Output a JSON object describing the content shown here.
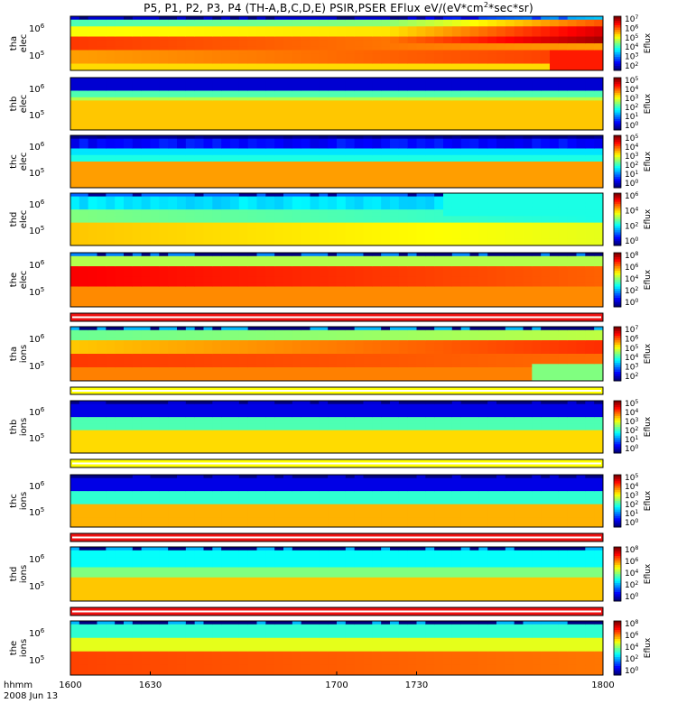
{
  "chart_data": {
    "type": "heatmap",
    "title": "P5, P1, P2, P3, P4 (TH-A,B,C,D,E) PSIR,PSER EFlux eV/(eV*cm2*sec*sr)",
    "title_parts": {
      "main": "P5, P1, P2, P3, P4 (TH-A,B,C,D,E) PSIR,PSER EFlux eV/(eV*cm",
      "sup": "2",
      "tail": "*sec*sr)"
    },
    "xlabel_lines": [
      "hhmm",
      "2008 Jun 13"
    ],
    "x_range": [
      1600,
      1800
    ],
    "x_ticks": [
      "1600",
      "1630",
      "1700",
      "1730",
      "1800"
    ],
    "colorbar_label": "Eflux",
    "colors": {
      "bar_red": "#ee1111",
      "bar_yellow": "#ffff00",
      "bar_white": "#ffffff"
    },
    "panels": [
      {
        "id": "tha-elec",
        "probe": "tha",
        "species": "elec",
        "yticks": [
          {
            "base": "10",
            "exp": "6"
          },
          {
            "base": "10",
            "exp": "5"
          }
        ],
        "cbar_labels": [
          {
            "base": "10",
            "exp": "7"
          },
          {
            "base": "10",
            "exp": "6"
          },
          {
            "base": "10",
            "exp": "5"
          },
          {
            "base": "10",
            "exp": "4"
          },
          {
            "base": "10",
            "exp": "3"
          },
          {
            "base": "10",
            "exp": "2"
          }
        ],
        "profile": "a_elec"
      },
      {
        "id": "thb-elec",
        "probe": "thb",
        "species": "elec",
        "yticks": [
          {
            "base": "10",
            "exp": "6"
          },
          {
            "base": "10",
            "exp": "5"
          }
        ],
        "cbar_labels": [
          {
            "base": "10",
            "exp": "5"
          },
          {
            "base": "10",
            "exp": "4"
          },
          {
            "base": "10",
            "exp": "3"
          },
          {
            "base": "10",
            "exp": "2"
          },
          {
            "base": "10",
            "exp": "1"
          },
          {
            "base": "10",
            "exp": "0"
          }
        ],
        "profile": "b_elec"
      },
      {
        "id": "thc-elec",
        "probe": "thc",
        "species": "elec",
        "yticks": [
          {
            "base": "10",
            "exp": "6"
          },
          {
            "base": "10",
            "exp": "5"
          }
        ],
        "cbar_labels": [
          {
            "base": "10",
            "exp": "5"
          },
          {
            "base": "10",
            "exp": "4"
          },
          {
            "base": "10",
            "exp": "3"
          },
          {
            "base": "10",
            "exp": "2"
          },
          {
            "base": "10",
            "exp": "1"
          },
          {
            "base": "10",
            "exp": "0"
          }
        ],
        "profile": "c_elec"
      },
      {
        "id": "thd-elec",
        "probe": "thd",
        "species": "elec",
        "yticks": [
          {
            "base": "10",
            "exp": "6"
          },
          {
            "base": "10",
            "exp": "5"
          }
        ],
        "cbar_labels": [
          {
            "base": "10",
            "exp": "6"
          },
          {
            "base": "10",
            "exp": "4"
          },
          {
            "base": "10",
            "exp": "2"
          },
          {
            "base": "10",
            "exp": "0"
          }
        ],
        "profile": "d_elec"
      },
      {
        "id": "the-elec",
        "probe": "the",
        "species": "elec",
        "yticks": [
          {
            "base": "10",
            "exp": "6"
          },
          {
            "base": "10",
            "exp": "5"
          }
        ],
        "cbar_labels": [
          {
            "base": "10",
            "exp": "8"
          },
          {
            "base": "10",
            "exp": "6"
          },
          {
            "base": "10",
            "exp": "4"
          },
          {
            "base": "10",
            "exp": "2"
          },
          {
            "base": "10",
            "exp": "0"
          }
        ],
        "profile": "e_elec"
      },
      {
        "id": "tha-ions",
        "probe": "tha",
        "species": "ions",
        "yticks": [
          {
            "base": "10",
            "exp": "6"
          },
          {
            "base": "10",
            "exp": "5"
          }
        ],
        "cbar_labels": [
          {
            "base": "10",
            "exp": "7"
          },
          {
            "base": "10",
            "exp": "6"
          },
          {
            "base": "10",
            "exp": "5"
          },
          {
            "base": "10",
            "exp": "4"
          },
          {
            "base": "10",
            "exp": "3"
          },
          {
            "base": "10",
            "exp": "2"
          }
        ],
        "profile": "a_ions"
      },
      {
        "id": "thb-ions",
        "probe": "thb",
        "species": "ions",
        "yticks": [
          {
            "base": "10",
            "exp": "6"
          },
          {
            "base": "10",
            "exp": "5"
          }
        ],
        "cbar_labels": [
          {
            "base": "10",
            "exp": "5"
          },
          {
            "base": "10",
            "exp": "4"
          },
          {
            "base": "10",
            "exp": "3"
          },
          {
            "base": "10",
            "exp": "2"
          },
          {
            "base": "10",
            "exp": "1"
          },
          {
            "base": "10",
            "exp": "0"
          }
        ],
        "profile": "b_ions"
      },
      {
        "id": "thc-ions",
        "probe": "thc",
        "species": "ions",
        "yticks": [
          {
            "base": "10",
            "exp": "6"
          },
          {
            "base": "10",
            "exp": "5"
          }
        ],
        "cbar_labels": [
          {
            "base": "10",
            "exp": "5"
          },
          {
            "base": "10",
            "exp": "4"
          },
          {
            "base": "10",
            "exp": "3"
          },
          {
            "base": "10",
            "exp": "2"
          },
          {
            "base": "10",
            "exp": "1"
          },
          {
            "base": "10",
            "exp": "0"
          }
        ],
        "profile": "c_ions"
      },
      {
        "id": "thd-ions",
        "probe": "thd",
        "species": "ions",
        "yticks": [
          {
            "base": "10",
            "exp": "6"
          },
          {
            "base": "10",
            "exp": "5"
          }
        ],
        "cbar_labels": [
          {
            "base": "10",
            "exp": "8"
          },
          {
            "base": "10",
            "exp": "6"
          },
          {
            "base": "10",
            "exp": "4"
          },
          {
            "base": "10",
            "exp": "2"
          },
          {
            "base": "10",
            "exp": "0"
          }
        ],
        "profile": "d_ions"
      },
      {
        "id": "the-ions",
        "probe": "the",
        "species": "ions",
        "yticks": [
          {
            "base": "10",
            "exp": "6"
          },
          {
            "base": "10",
            "exp": "5"
          }
        ],
        "cbar_labels": [
          {
            "base": "10",
            "exp": "8"
          },
          {
            "base": "10",
            "exp": "6"
          },
          {
            "base": "10",
            "exp": "4"
          },
          {
            "base": "10",
            "exp": "2"
          },
          {
            "base": "10",
            "exp": "0"
          }
        ],
        "profile": "e_ions"
      }
    ],
    "flag_bars": [
      {
        "after_panel": "the-elec",
        "color": "red"
      },
      {
        "after_panel": "tha-ions",
        "color": "yellow"
      },
      {
        "after_panel": "thb-ions",
        "color": "yellow"
      },
      {
        "after_panel": "thc-ions",
        "color": "red"
      },
      {
        "after_panel": "thd-ions",
        "color": "red"
      }
    ]
  }
}
